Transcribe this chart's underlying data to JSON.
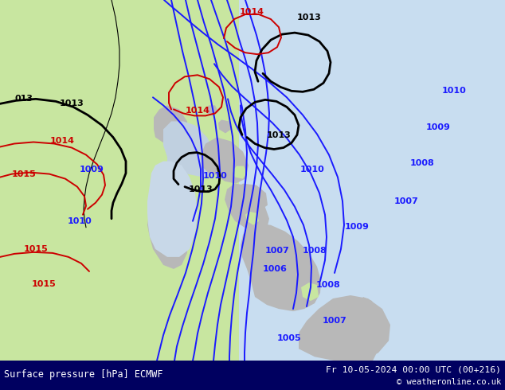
{
  "title_left": "Surface pressure [hPa] ECMWF",
  "title_right": "Fr 10-05-2024 00:00 UTC (00+216)",
  "copyright": "© weatheronline.co.uk",
  "land_green": "#c8e6a0",
  "land_gray": "#b8b8b8",
  "land_green2": "#a8c890",
  "sea_color": "#c8ddf0",
  "isobar_blue": "#1a1aff",
  "isobar_black": "#000000",
  "isobar_red": "#cc0000",
  "bar_color": "#000060",
  "figsize": [
    6.34,
    4.9
  ],
  "dpi": 100
}
